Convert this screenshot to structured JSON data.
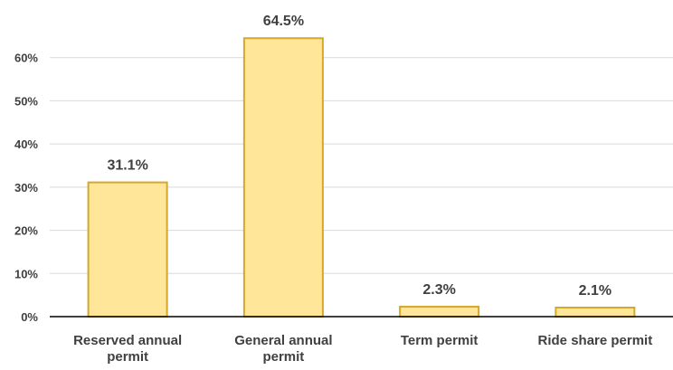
{
  "chart_data": {
    "type": "bar",
    "title": "",
    "xlabel": "",
    "ylabel": "",
    "categories": [
      [
        "Reserved annual",
        "permit"
      ],
      [
        "General annual",
        "permit"
      ],
      [
        "Term permit"
      ],
      [
        "Ride share permit"
      ]
    ],
    "values": [
      31.1,
      64.5,
      2.3,
      2.1
    ],
    "data_labels": [
      "31.1%",
      "64.5%",
      "2.3%",
      "2.1%"
    ],
    "yticks": [
      0,
      10,
      20,
      30,
      40,
      50,
      60
    ],
    "ytick_labels": [
      "0%",
      "10%",
      "20%",
      "30%",
      "40%",
      "50%",
      "60%"
    ],
    "ylim": [
      0,
      70
    ],
    "grid": true,
    "legend": "none",
    "colors": {
      "bar_fill": "#FFE699",
      "bar_stroke": "#D4A82A",
      "grid": "#D9D9D9",
      "axis": "#000000",
      "text": "#404040"
    }
  }
}
